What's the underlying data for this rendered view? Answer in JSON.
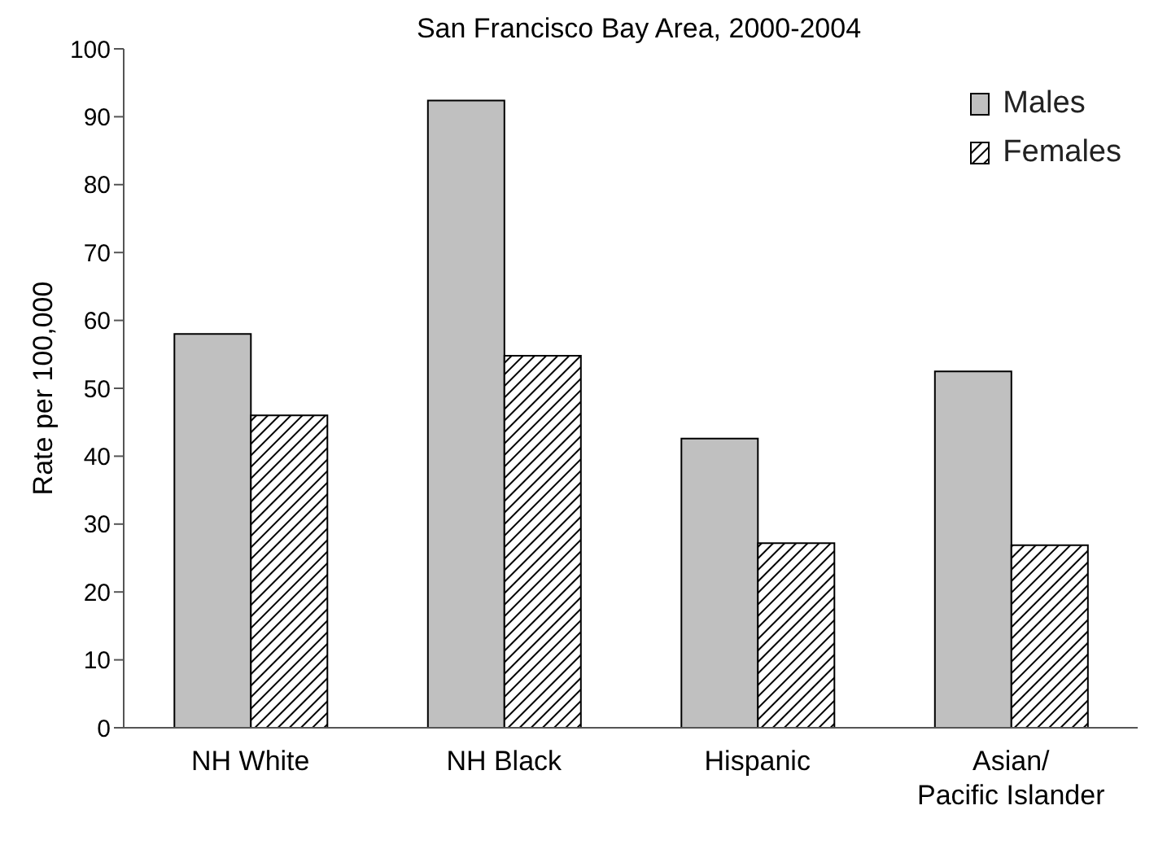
{
  "chart_data": {
    "type": "bar",
    "title": "San Francisco Bay Area, 2000-2004",
    "ylabel": "Rate per 100,000",
    "categories": [
      "NH White",
      "NH Black",
      "Hispanic",
      "Asian/\nPacific Islander"
    ],
    "series": [
      {
        "name": "Males",
        "color": "#c0c0c0",
        "values": [
          58,
          92.4,
          42.6,
          52.5
        ]
      },
      {
        "name": "Females",
        "color": "#000000",
        "values": [
          46,
          54.8,
          27.2,
          26.9
        ]
      }
    ],
    "ylim": [
      0,
      100
    ],
    "yticks": [
      0,
      10,
      20,
      30,
      40,
      50,
      60,
      70,
      80,
      90,
      100
    ],
    "grid": false,
    "legend": "top right"
  }
}
